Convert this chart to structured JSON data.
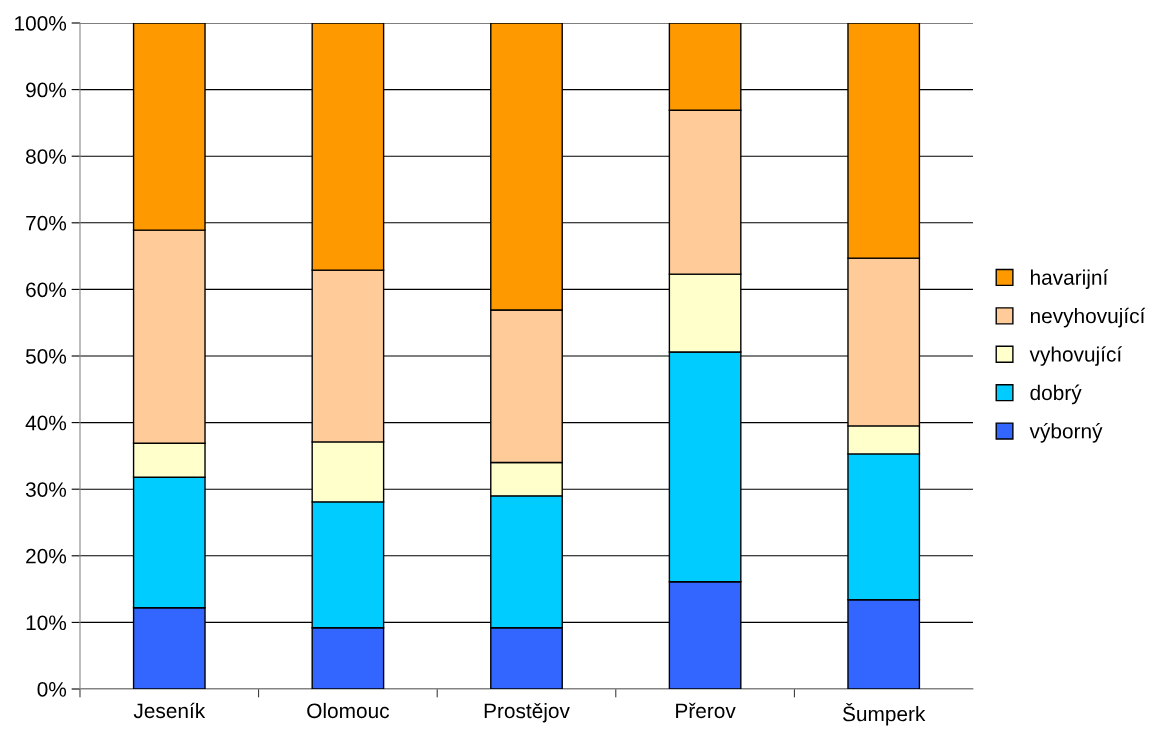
{
  "chart_data": {
    "type": "bar",
    "stacked": true,
    "categories": [
      "Jeseník",
      "Olomouc",
      "Prostějov",
      "Přerov",
      "Šumperk"
    ],
    "series": [
      {
        "name": "výborný",
        "color": "#3366ff",
        "values": [
          12.2,
          9.2,
          9.2,
          16.1,
          13.4
        ]
      },
      {
        "name": "dobrý",
        "color": "#00ccff",
        "values": [
          19.6,
          18.9,
          19.8,
          34.5,
          21.9
        ]
      },
      {
        "name": "vyhovující",
        "color": "#ffffcc",
        "values": [
          5.1,
          9.0,
          5.0,
          11.7,
          4.2
        ]
      },
      {
        "name": "nevyhovující",
        "color": "#ffcc99",
        "values": [
          32.0,
          25.8,
          22.9,
          24.6,
          25.2
        ]
      },
      {
        "name": "havarijní",
        "color": "#ff9900",
        "values": [
          31.1,
          37.1,
          43.1,
          13.1,
          35.3
        ]
      }
    ],
    "ylim": [
      0,
      100
    ],
    "yticks": [
      {
        "value": 0,
        "label": "0%"
      },
      {
        "value": 10,
        "label": "10%"
      },
      {
        "value": 20,
        "label": "20%"
      },
      {
        "value": 30,
        "label": "30%"
      },
      {
        "value": 40,
        "label": "40%"
      },
      {
        "value": 50,
        "label": "50%"
      },
      {
        "value": 60,
        "label": "60%"
      },
      {
        "value": 70,
        "label": "70%"
      },
      {
        "value": 80,
        "label": "80%"
      },
      {
        "value": 90,
        "label": "90%"
      },
      {
        "value": 100,
        "label": "100%"
      }
    ],
    "grid": "y",
    "legend": "right"
  }
}
